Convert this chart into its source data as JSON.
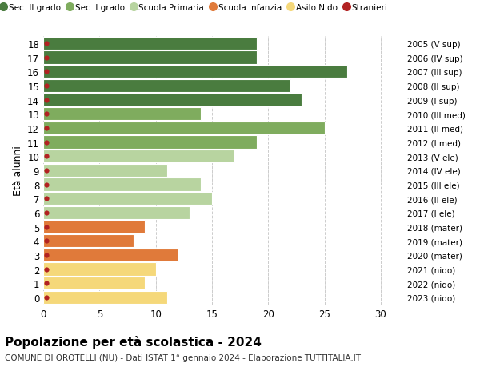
{
  "ages": [
    18,
    17,
    16,
    15,
    14,
    13,
    12,
    11,
    10,
    9,
    8,
    7,
    6,
    5,
    4,
    3,
    2,
    1,
    0
  ],
  "values": [
    19,
    19,
    27,
    22,
    23,
    14,
    25,
    19,
    17,
    11,
    14,
    15,
    13,
    9,
    8,
    12,
    10,
    9,
    11
  ],
  "stranieri": [
    1,
    1,
    1,
    1,
    1,
    1,
    1,
    1,
    1,
    1,
    1,
    1,
    1,
    1,
    1,
    1,
    1,
    1,
    1
  ],
  "right_labels": [
    "2005 (V sup)",
    "2006 (IV sup)",
    "2007 (III sup)",
    "2008 (II sup)",
    "2009 (I sup)",
    "2010 (III med)",
    "2011 (II med)",
    "2012 (I med)",
    "2013 (V ele)",
    "2014 (IV ele)",
    "2015 (III ele)",
    "2016 (II ele)",
    "2017 (I ele)",
    "2018 (mater)",
    "2019 (mater)",
    "2020 (mater)",
    "2021 (nido)",
    "2022 (nido)",
    "2023 (nido)"
  ],
  "bar_colors": [
    "#4a7c3f",
    "#4a7c3f",
    "#4a7c3f",
    "#4a7c3f",
    "#4a7c3f",
    "#7fac5e",
    "#7fac5e",
    "#7fac5e",
    "#b8d4a0",
    "#b8d4a0",
    "#b8d4a0",
    "#b8d4a0",
    "#b8d4a0",
    "#e07a3a",
    "#e07a3a",
    "#e07a3a",
    "#f5d87a",
    "#f5d87a",
    "#f5d87a"
  ],
  "legend_labels": [
    "Sec. II grado",
    "Sec. I grado",
    "Scuola Primaria",
    "Scuola Infanzia",
    "Asilo Nido",
    "Stranieri"
  ],
  "legend_colors": [
    "#4a7c3f",
    "#7fac5e",
    "#b8d4a0",
    "#e07a3a",
    "#f5d87a",
    "#b22222"
  ],
  "title": "Popolazione per età scolastica - 2024",
  "subtitle": "COMUNE DI OROTELLI (NU) - Dati ISTAT 1° gennaio 2024 - Elaborazione TUTTITALIA.IT",
  "ylabel_left": "Età alunni",
  "xlim": [
    0,
    32
  ],
  "background_color": "#ffffff",
  "grid_color": "#cccccc",
  "stranieri_color": "#b22222",
  "bar_height": 0.92
}
